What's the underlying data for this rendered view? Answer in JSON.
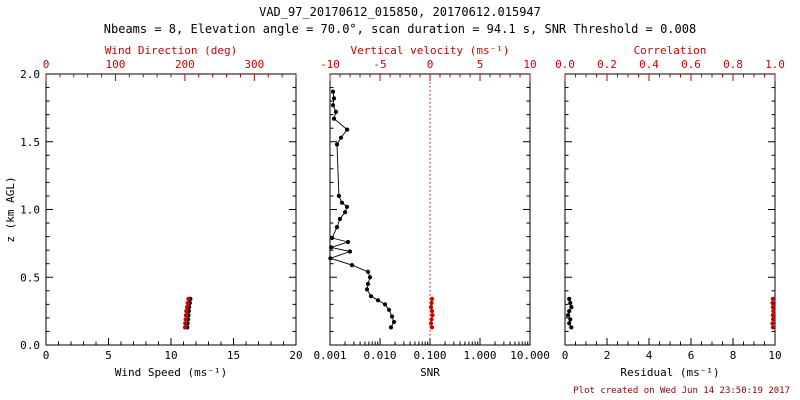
{
  "title": "VAD_97_20170612_015850, 20170612.015947",
  "subtitle": "Nbeams = 8, Elevation angle = 70.0°, scan duration = 94.1 s, SNR Threshold = 0.008",
  "footer": "Plot created on Wed Jun 14 23:50:19 2017",
  "ylabel": "z (km AGL)",
  "y_range": [
    0,
    2
  ],
  "y_major_ticks": [
    0,
    0.5,
    1,
    1.5,
    2
  ],
  "y_tick_labels": [
    "0.0",
    "0.5",
    "1.0",
    "1.5",
    "2.0"
  ],
  "y_minor_step": 0.1,
  "colors": {
    "frame": "#000000",
    "secondary": "#cc0000",
    "footer": "#8b0000",
    "background": "#ffffff"
  },
  "chart_data": [
    {
      "type": "scatter",
      "name": "wind",
      "bottom_axis": {
        "label": "Wind Speed (ms⁻¹)",
        "scale": "linear",
        "range": [
          0,
          20
        ],
        "major_ticks": [
          0,
          5,
          10,
          15,
          20
        ],
        "tick_labels": [
          "0",
          "5",
          "10",
          "15",
          "20"
        ],
        "minor_step": 1
      },
      "top_axis": {
        "label": "Wind Direction (deg)",
        "scale": "linear",
        "range": [
          0,
          360
        ],
        "major_ticks": [
          0,
          100,
          200,
          300
        ],
        "tick_labels": [
          "0",
          "100",
          "200",
          "300"
        ],
        "minor_step": 20
      },
      "series": [
        {
          "name": "wind-speed",
          "axis": "bottom",
          "color": "#000000",
          "z": [
            0.13,
            0.16,
            0.19,
            0.22,
            0.25,
            0.28,
            0.31,
            0.34
          ],
          "values": [
            11.3,
            11.33,
            11.37,
            11.4,
            11.42,
            11.45,
            11.5,
            11.55
          ]
        },
        {
          "name": "wind-direction",
          "axis": "top",
          "color": "#cc0000",
          "z": [
            0.13,
            0.16,
            0.19,
            0.22,
            0.25,
            0.28,
            0.31,
            0.34
          ],
          "values": [
            200,
            200.5,
            201,
            201.5,
            202,
            203,
            204,
            205
          ]
        }
      ]
    },
    {
      "type": "scatter",
      "name": "snr",
      "bottom_axis": {
        "label": "SNR",
        "scale": "log",
        "range": [
          0.001,
          10
        ],
        "major_ticks": [
          0.001,
          0.01,
          0.1,
          1,
          10
        ],
        "tick_labels": [
          "0.001",
          "0.010",
          "0.100",
          "1.000",
          "10.000"
        ]
      },
      "top_axis": {
        "label": "Vertical velocity (ms⁻¹)",
        "scale": "linear",
        "range": [
          -10,
          10
        ],
        "major_ticks": [
          -10,
          -5,
          0,
          5,
          10
        ],
        "tick_labels": [
          "-10",
          "-5",
          "0",
          "5",
          "10"
        ],
        "minor_step": 1
      },
      "reference_line": {
        "axis": "top",
        "value": 0,
        "color": "#cc0000",
        "style": "dotted"
      },
      "series": [
        {
          "name": "snr-profile",
          "axis": "bottom",
          "color": "#000000",
          "z": [
            1.87,
            1.82,
            1.77,
            1.72,
            1.67,
            1.59,
            1.53,
            1.48,
            1.1,
            1.05,
            1.02,
            0.98,
            0.93,
            0.87,
            0.79,
            0.76,
            0.72,
            0.69,
            0.64,
            0.59,
            0.54,
            0.5,
            0.45,
            0.41,
            0.36,
            0.33,
            0.3,
            0.26,
            0.21,
            0.17,
            0.13
          ],
          "values": [
            0.00115,
            0.0012,
            0.00115,
            0.00132,
            0.0012,
            0.0022,
            0.00166,
            0.00138,
            0.00151,
            0.00174,
            0.00219,
            0.002,
            0.00158,
            0.00138,
            0.0011,
            0.00229,
            0.00105,
            0.00251,
            0.00102,
            0.00276,
            0.00575,
            0.00631,
            0.00575,
            0.0055,
            0.00661,
            0.00912,
            0.01259,
            0.01514,
            0.01738,
            0.01905,
            0.0166
          ]
        },
        {
          "name": "vertical-velocity",
          "axis": "top",
          "color": "#cc0000",
          "z": [
            0.13,
            0.16,
            0.19,
            0.22,
            0.25,
            0.28,
            0.31,
            0.34
          ],
          "values": [
            0.2,
            0.1,
            0.15,
            0.25,
            0.2,
            0.1,
            0.15,
            0.2
          ]
        }
      ]
    },
    {
      "type": "scatter",
      "name": "residual",
      "bottom_axis": {
        "label": "Residual (ms⁻¹)",
        "scale": "linear",
        "range": [
          0,
          10
        ],
        "major_ticks": [
          0,
          2,
          4,
          6,
          8,
          10
        ],
        "tick_labels": [
          "0",
          "2",
          "4",
          "6",
          "8",
          "10"
        ],
        "minor_step": 0.5
      },
      "top_axis": {
        "label": "Correlation",
        "scale": "linear",
        "range": [
          0,
          1
        ],
        "major_ticks": [
          0,
          0.2,
          0.4,
          0.6,
          0.8,
          1
        ],
        "tick_labels": [
          "0.0",
          "0.2",
          "0.4",
          "0.6",
          "0.8",
          "1.0"
        ],
        "minor_step": 0.05
      },
      "series": [
        {
          "name": "residual",
          "axis": "bottom",
          "color": "#000000",
          "z": [
            0.13,
            0.16,
            0.19,
            0.22,
            0.25,
            0.28,
            0.31,
            0.34
          ],
          "values": [
            0.3,
            0.2,
            0.25,
            0.15,
            0.2,
            0.3,
            0.25,
            0.2
          ]
        },
        {
          "name": "correlation",
          "axis": "top",
          "color": "#cc0000",
          "z": [
            0.13,
            0.16,
            0.19,
            0.22,
            0.25,
            0.28,
            0.31,
            0.34
          ],
          "values": [
            0.99,
            0.988,
            0.991,
            0.99,
            0.992,
            0.99,
            0.988,
            0.99
          ]
        }
      ]
    }
  ]
}
